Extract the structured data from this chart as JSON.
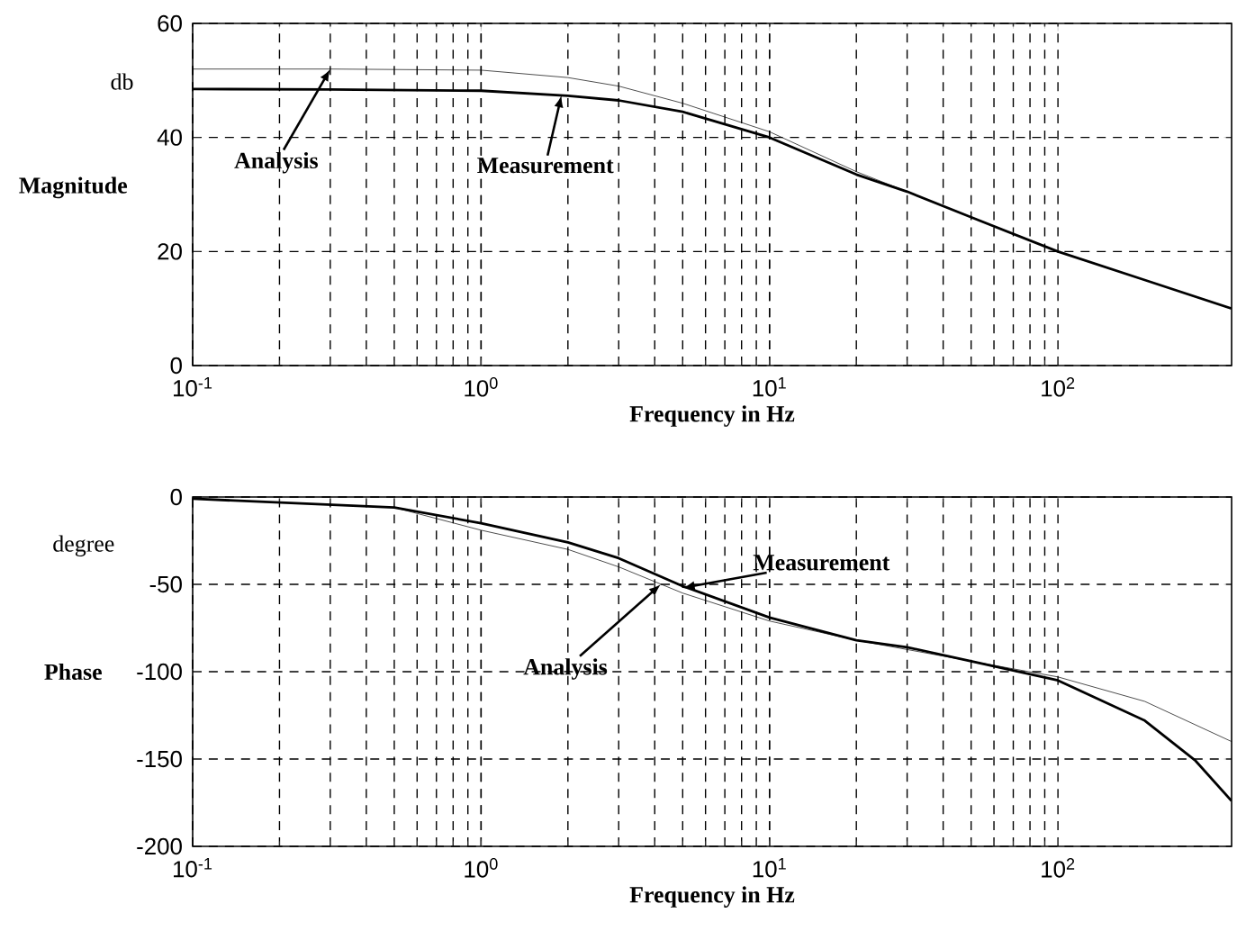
{
  "chart_data": [
    {
      "type": "line",
      "xlabel": "Frequency in Hz",
      "ylabel": "Magnitude",
      "log": "x",
      "grid": true,
      "xlim": [
        0.1,
        400
      ],
      "ylim": [
        0,
        60
      ],
      "xticks": [
        {
          "value": 0.1,
          "label": "10$^{-1}$"
        },
        {
          "value": 1,
          "label": "10$^{0}$"
        },
        {
          "value": 10,
          "label": "10$^{1}$"
        },
        {
          "value": 100,
          "label": "10$^{2}$"
        }
      ],
      "yticks": [
        0,
        20,
        40,
        60
      ],
      "series": [
        {
          "color": "#000000",
          "x": [
            0.1,
            0.3,
            1,
            2,
            3,
            5,
            10,
            20,
            30,
            50,
            100,
            200,
            400
          ],
          "values": [
            52,
            52,
            51.8,
            50.5,
            49,
            46,
            41,
            34,
            30.5,
            26,
            20,
            15,
            10
          ]
        },
        {
          "color": "#000000",
          "x": [
            0.1,
            0.3,
            1,
            2,
            3,
            5,
            10,
            20,
            30,
            50,
            100,
            200,
            400
          ],
          "values": [
            48.5,
            48.4,
            48.2,
            47.3,
            46.5,
            44.5,
            40,
            33.5,
            30.5,
            26,
            20,
            15,
            10
          ]
        }
      ],
      "annotations": [
        "db",
        {
          "text": "Analysis",
          "x": 0.3,
          "y": 52
        },
        {
          "text": "Measurement",
          "x": 1.9,
          "y": 47.4
        }
      ]
    },
    {
      "type": "line",
      "xlabel": "Frequency in Hz",
      "ylabel": "Phase",
      "log": "x",
      "grid": true,
      "xlim": [
        0.1,
        400
      ],
      "ylim": [
        -200,
        0
      ],
      "xticks": [
        {
          "value": 0.1,
          "label": "10$^{-1}$"
        },
        {
          "value": 1,
          "label": "10$^{0}$"
        },
        {
          "value": 10,
          "label": "10$^{1}$"
        },
        {
          "value": 100,
          "label": "10$^{2}$"
        }
      ],
      "yticks": [
        0,
        -50,
        -100,
        -150,
        -200
      ],
      "series": [
        {
          "color": "#000000",
          "x": [
            0.1,
            0.5,
            1,
            2,
            3,
            5,
            10,
            20,
            50,
            100,
            200,
            400
          ],
          "values": [
            -1,
            -6,
            -19,
            -30,
            -40,
            -55,
            -71,
            -82,
            -94,
            -103,
            -117,
            -140
          ]
        },
        {
          "color": "#000000",
          "x": [
            0.1,
            0.5,
            1,
            2,
            3,
            5,
            10,
            20,
            30,
            50,
            100,
            200,
            300,
            400
          ],
          "values": [
            -1,
            -6,
            -15,
            -26,
            -35,
            -51,
            -69,
            -82,
            -86,
            -94,
            -105,
            -128,
            -151,
            -174
          ]
        }
      ],
      "annotations": [
        "degree",
        {
          "text": "Measurement",
          "x": 5,
          "y": -52
        },
        {
          "text": "Analysis",
          "x": 4.2,
          "y": -50
        }
      ]
    }
  ]
}
